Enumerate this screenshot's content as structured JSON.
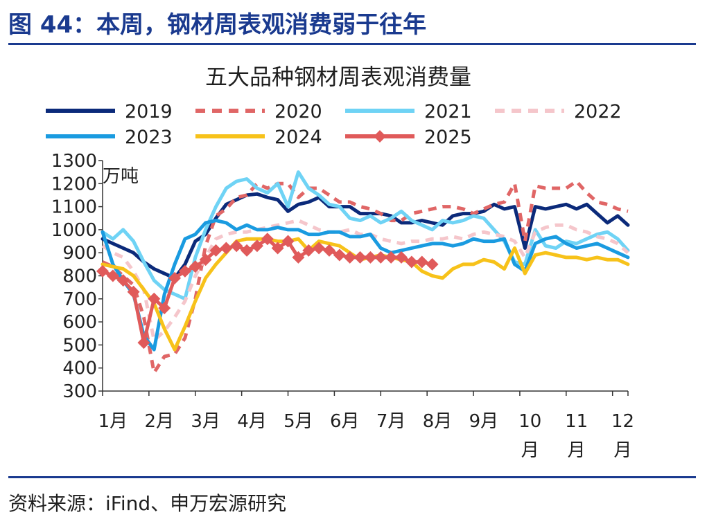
{
  "figure_title": "图 44：本周，钢材周表观消费弱于往年",
  "source": "资料来源：iFind、申万宏源研究",
  "chart_data": {
    "type": "line",
    "title": "五大品种钢材周表观消费量",
    "unit": "万吨",
    "ylim": [
      300,
      1300
    ],
    "yticks": [
      300,
      400,
      500,
      600,
      700,
      800,
      900,
      1000,
      1100,
      1200,
      1300
    ],
    "x_axis": "week of year (1-52)",
    "month_labels": [
      {
        "label": "1月",
        "week": 1
      },
      {
        "label": "2月",
        "week": 5.5
      },
      {
        "label": "3月",
        "week": 10
      },
      {
        "label": "4月",
        "week": 14.5
      },
      {
        "label": "5月",
        "week": 19
      },
      {
        "label": "6月",
        "week": 23.5
      },
      {
        "label": "7月",
        "week": 28
      },
      {
        "label": "8月",
        "week": 32.5
      },
      {
        "label": "9月",
        "week": 37
      },
      {
        "label": "10\n月",
        "week": 41.5
      },
      {
        "label": "11\n月",
        "week": 46
      },
      {
        "label": "12\n月",
        "week": 50.5
      }
    ],
    "legend_placement": "top",
    "series": [
      {
        "name": "2019",
        "color": "#0b2a7a",
        "style": "solid",
        "width": 5,
        "values": [
          960,
          940,
          920,
          900,
          860,
          830,
          810,
          790,
          850,
          950,
          980,
          1050,
          1110,
          1130,
          1150,
          1155,
          1140,
          1130,
          1080,
          1110,
          1120,
          1140,
          1100,
          1100,
          1100,
          1070,
          1070,
          1070,
          1060,
          1030,
          1030,
          1040,
          1030,
          1020,
          1060,
          1070,
          1070,
          1080,
          1110,
          1090,
          1100,
          920,
          1100,
          1090,
          1100,
          1110,
          1090,
          1110,
          1070,
          1030,
          1060,
          1020
        ]
      },
      {
        "name": "2020",
        "color": "#e06666",
        "style": "dashed",
        "width": 5,
        "values": [
          860,
          840,
          800,
          760,
          620,
          380,
          450,
          460,
          530,
          700,
          930,
          1060,
          1090,
          1140,
          1150,
          1200,
          1180,
          1200,
          1200,
          1140,
          1180,
          1180,
          1150,
          1120,
          1120,
          1100,
          1090,
          1070,
          1040,
          1040,
          1070,
          1080,
          1090,
          1100,
          1100,
          1090,
          1070,
          1090,
          1110,
          1120,
          1200,
          950,
          1190,
          1180,
          1180,
          1180,
          1210,
          1160,
          1120,
          1110,
          1090,
          1080
        ]
      },
      {
        "name": "2021",
        "color": "#6fd3f5",
        "style": "solid",
        "width": 5,
        "values": [
          990,
          960,
          1000,
          950,
          860,
          780,
          740,
          720,
          700,
          880,
          1000,
          1100,
          1180,
          1210,
          1220,
          1180,
          1160,
          1200,
          1100,
          1250,
          1180,
          1150,
          1110,
          1100,
          1050,
          1040,
          1060,
          1030,
          1050,
          1080,
          1040,
          1020,
          1000,
          1040,
          1030,
          1040,
          1060,
          1050,
          1000,
          950,
          860,
          850,
          1000,
          930,
          920,
          950,
          940,
          960,
          980,
          990,
          960,
          910
        ]
      },
      {
        "name": "2022",
        "color": "#f5c6cb",
        "style": "dashed",
        "width": 5,
        "values": [
          930,
          900,
          880,
          820,
          740,
          520,
          560,
          620,
          690,
          800,
          880,
          960,
          980,
          990,
          990,
          1000,
          1010,
          1020,
          1030,
          1040,
          1020,
          1000,
          990,
          990,
          1000,
          980,
          980,
          960,
          950,
          940,
          950,
          950,
          960,
          960,
          970,
          960,
          980,
          990,
          980,
          970,
          950,
          880,
          990,
          1010,
          1020,
          1020,
          1000,
          990,
          970,
          960,
          940,
          900
        ]
      },
      {
        "name": "2023",
        "color": "#1a9be0",
        "style": "solid",
        "width": 5,
        "values": [
          990,
          850,
          780,
          720,
          540,
          480,
          720,
          850,
          960,
          980,
          1030,
          1040,
          1030,
          1000,
          1020,
          1000,
          1000,
          1010,
          1000,
          1000,
          980,
          980,
          990,
          990,
          970,
          970,
          980,
          920,
          900,
          910,
          920,
          930,
          940,
          940,
          930,
          940,
          960,
          950,
          950,
          960,
          850,
          820,
          940,
          960,
          970,
          940,
          920,
          930,
          940,
          920,
          900,
          880
        ]
      },
      {
        "name": "2024",
        "color": "#f7c21a",
        "style": "solid",
        "width": 5,
        "values": [
          850,
          840,
          830,
          800,
          740,
          680,
          570,
          480,
          580,
          690,
          790,
          850,
          900,
          950,
          960,
          960,
          960,
          950,
          950,
          960,
          910,
          950,
          940,
          930,
          900,
          870,
          880,
          890,
          880,
          870,
          860,
          820,
          800,
          790,
          830,
          850,
          850,
          870,
          860,
          830,
          920,
          810,
          890,
          900,
          890,
          880,
          880,
          870,
          880,
          870,
          870,
          850
        ]
      },
      {
        "name": "2025",
        "color": "#e05a5a",
        "style": "solid",
        "width": 5,
        "marker": "diamond",
        "values": [
          820,
          800,
          780,
          730,
          510,
          700,
          660,
          790,
          820,
          840,
          870,
          910,
          920,
          930,
          910,
          930,
          960,
          920,
          950,
          880,
          910,
          920,
          910,
          890,
          880,
          880,
          880,
          880,
          880,
          880,
          860,
          860,
          850
        ]
      }
    ]
  }
}
